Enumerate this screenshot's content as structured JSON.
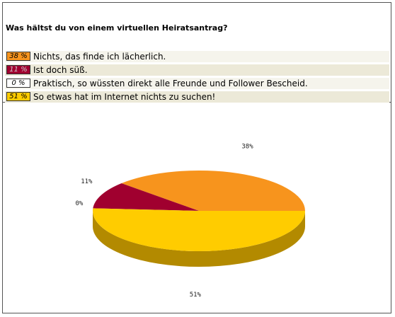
{
  "poll": {
    "question": "Was hältst du von einem virtuellen Heiratsantrag?",
    "options": [
      {
        "percent_label": "38 %",
        "text": "Nichts, das finde ich lächerlich.",
        "color": "#F7941D",
        "text_color": "#000000",
        "row_bg": "#F5F4EC"
      },
      {
        "percent_label": "11 %",
        "text": "Ist doch süß.",
        "color": "#A0002F",
        "text_color": "#CCCCCC",
        "row_bg": "#ECE9D8"
      },
      {
        "percent_label": "0 %",
        "text": "Praktisch, so wüssten direkt alle Freunde und Follower Bescheid.",
        "color": "#FFFFFF",
        "text_color": "#000000",
        "row_bg": "#F5F4EC"
      },
      {
        "percent_label": "51 %",
        "text": "So etwas hat im Internet nichts zu suchen!",
        "color": "#FFCC00",
        "text_color": "#000000",
        "row_bg": "#ECE9D8"
      }
    ]
  },
  "chart_data": {
    "type": "pie",
    "values": [
      38,
      11,
      0,
      51
    ],
    "labels": [
      "38%",
      "11%",
      "0%",
      "51%"
    ],
    "colors": [
      "#F7941D",
      "#A0002F",
      "#EEEEEE",
      "#FFCC00"
    ],
    "side_colors": [
      "#B8650F",
      "#6A001E",
      "#BBBBBB",
      "#B38A00"
    ],
    "three_d": true
  }
}
